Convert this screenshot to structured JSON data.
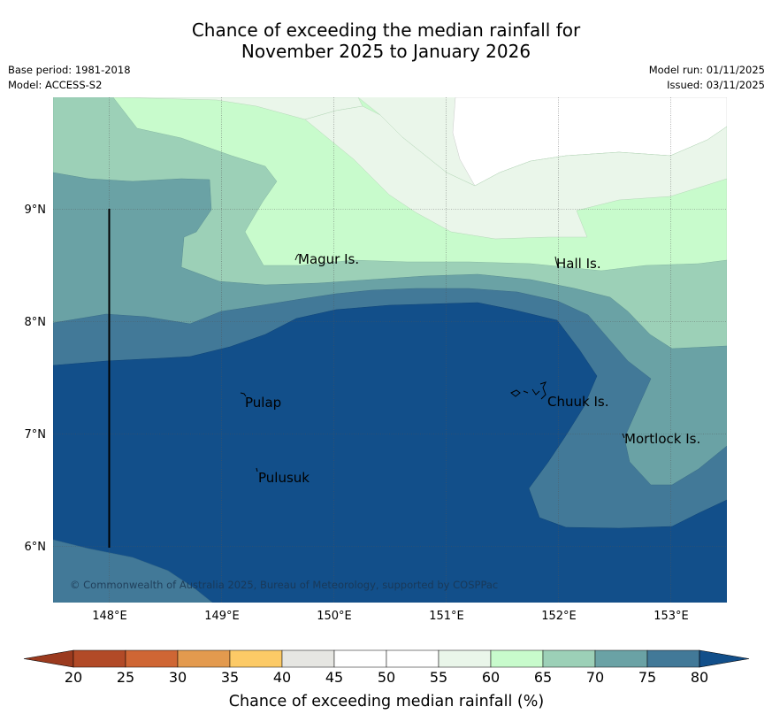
{
  "title": {
    "line1": "Chance of exceeding the median rainfall for",
    "line2": "November 2025 to January 2026"
  },
  "meta": {
    "base_period": "Base period: 1981-2018",
    "model": "Model: ACCESS-S2",
    "model_run": "Model run: 01/11/2025",
    "issued": "Issued: 03/11/2025"
  },
  "axes": {
    "lat_labels": [
      "9°N",
      "8°N",
      "7°N",
      "6°N"
    ],
    "lon_labels": [
      "148°E",
      "149°E",
      "150°E",
      "151°E",
      "152°E",
      "153°E"
    ]
  },
  "places": [
    {
      "name": "Magur Is."
    },
    {
      "name": "Hall Is."
    },
    {
      "name": "Pulap"
    },
    {
      "name": "Chuuk Is."
    },
    {
      "name": "Mortlock Is."
    },
    {
      "name": "Pulusuk"
    }
  ],
  "copyright": "© Commonwealth of Australia 2025, Bureau of Meteorology, supported by COSPPac",
  "colorbar": {
    "ticks": [
      "20",
      "25",
      "30",
      "35",
      "40",
      "45",
      "50",
      "55",
      "60",
      "65",
      "70",
      "75",
      "80"
    ],
    "label": "Chance of exceeding median rainfall (%)",
    "colors": {
      "under": "#9b3a1e",
      "c20_25": "#b24a27",
      "c25_30": "#cf6634",
      "c30_35": "#e39a4e",
      "c35_40": "#fcca66",
      "c40_45": "#e6e6e2",
      "c45_50": "#ffffff",
      "c50_55": "#ffffff",
      "c55_60": "#eaf6ea",
      "c60_65": "#c8fbcc",
      "c65_70": "#9cd0b7",
      "c70_75": "#6aa2a5",
      "c75_80": "#427998",
      "over": "#124f8a"
    }
  }
}
